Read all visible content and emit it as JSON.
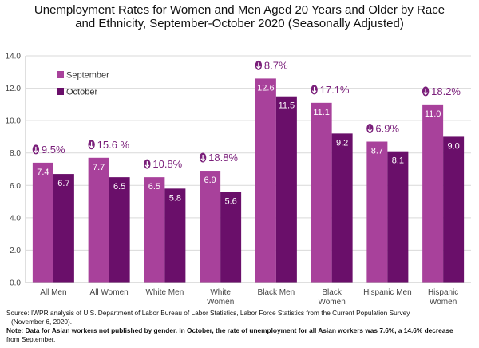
{
  "chart_data": {
    "type": "bar",
    "title": "Unemployment Rates for Women and Men Aged 20 Years and Older by Race and Ethnicity, September-October 2020 (Seasonally Adjusted)",
    "categories": [
      "All Men",
      "All Women",
      "White Men",
      "White Women",
      "Black Men",
      "Black Women",
      "Hispanic Men",
      "Hispanic Women"
    ],
    "category_lines": [
      [
        "All Men"
      ],
      [
        "All Women"
      ],
      [
        "White Men"
      ],
      [
        "White",
        "Women"
      ],
      [
        "Black Men"
      ],
      [
        "Black",
        "Women"
      ],
      [
        "Hispanic Men"
      ],
      [
        "Hispanic",
        "Women"
      ]
    ],
    "series": [
      {
        "name": "September",
        "values": [
          7.4,
          7.7,
          6.5,
          6.9,
          12.6,
          11.1,
          8.7,
          11.0
        ],
        "labels": [
          "7.4",
          "7.7",
          "6.5",
          "6.9",
          "12.6",
          "11.1",
          "8.7",
          "11.0"
        ],
        "color": "#a8419b"
      },
      {
        "name": "October",
        "values": [
          6.7,
          6.5,
          5.8,
          5.6,
          11.5,
          9.2,
          8.1,
          9.0
        ],
        "labels": [
          "6.7",
          "6.5",
          "5.8",
          "5.6",
          "11.5",
          "9.2",
          "8.1",
          "9.0"
        ],
        "color": "#6a0f6a"
      }
    ],
    "annotations": [
      "9.5%",
      "15.6 %",
      "10.8%",
      "18.8%",
      "8.7%",
      "17.1%",
      "6.9%",
      "18.2%"
    ],
    "annotation_color": "#7a1f7a",
    "ylim": [
      0,
      14
    ],
    "yticks": [
      "0.0",
      "2.0",
      "4.0",
      "6.0",
      "8.0",
      "10.0",
      "12.0",
      "14.0"
    ],
    "grid": true,
    "legend_position": "top-left"
  },
  "footnote": {
    "line1": "Source: IWPR analysis of U.S. Department of Labor Bureau of Labor Statistics, Labor Force Statistics from the Current Population Survey",
    "line2": "(November 6, 2020).",
    "line3": "Note: Data for Asian workers not published by gender. In October, the rate of unemployment for all Asian workers was 7.6%, a 14.6% decrease",
    "line4": "from September."
  },
  "icons": {
    "annotation_icon": "down-arrow-icon"
  }
}
